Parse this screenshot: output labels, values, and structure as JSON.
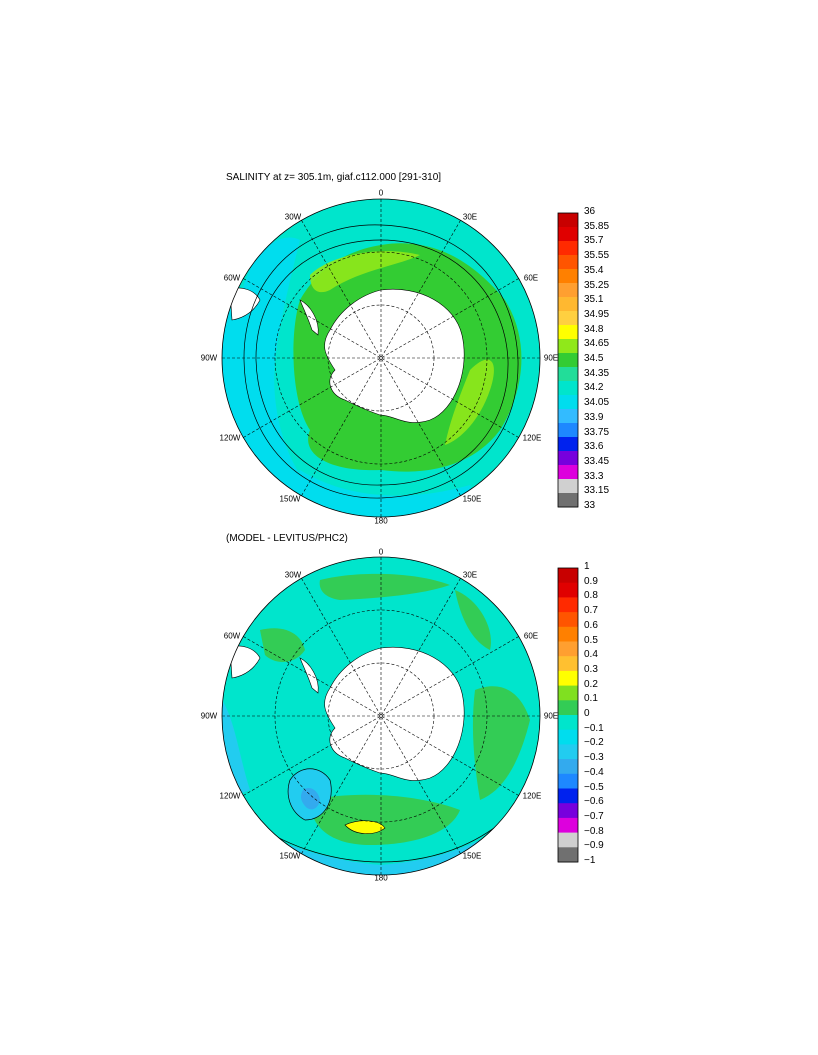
{
  "maps": [
    {
      "title": "SALINITY at z= 305.1m, giaf.c112.000 [291-310]",
      "direction_labels": {
        "top": "0",
        "top_left": "30W",
        "top_right": "30E",
        "upper_left": "60W",
        "upper_right": "60E",
        "left": "90W",
        "right": "90E",
        "lower_left": "120W",
        "lower_right": "120E",
        "bottom_left": "150W",
        "bottom_right": "150E",
        "bottom": "180"
      },
      "colorbar": {
        "labels": [
          "36",
          "35.85",
          "35.7",
          "35.55",
          "35.4",
          "35.25",
          "35.1",
          "34.95",
          "34.8",
          "34.65",
          "34.5",
          "34.35",
          "34.2",
          "34.05",
          "33.9",
          "33.75",
          "33.6",
          "33.45",
          "33.3",
          "33.15",
          "33"
        ],
        "colors": [
          "#c80000",
          "#e00000",
          "#ff2a00",
          "#ff5500",
          "#ff8000",
          "#ff9f30",
          "#ffb830",
          "#ffd040",
          "#ffff00",
          "#90e81a",
          "#33cc33",
          "#22dd99",
          "#00e5cc",
          "#00ddee",
          "#33bbff",
          "#1e88ff",
          "#0022ee",
          "#7700dd",
          "#dd00dd",
          "#d0d0d0",
          "#707070"
        ]
      }
    },
    {
      "title": "(MODEL - LEVITUS/PHC2)",
      "direction_labels": {
        "top": "0",
        "top_left": "30W",
        "top_right": "30E",
        "upper_left": "60W",
        "upper_right": "60E",
        "left": "90W",
        "right": "90E",
        "lower_left": "120W",
        "lower_right": "120E",
        "bottom_left": "150W",
        "bottom_right": "150E",
        "bottom": "180"
      },
      "colorbar": {
        "labels": [
          "1",
          "0.9",
          "0.8",
          "0.7",
          "0.6",
          "0.5",
          "0.4",
          "0.3",
          "0.2",
          "0.1",
          "0",
          "−0.1",
          "−0.2",
          "−0.3",
          "−0.4",
          "−0.5",
          "−0.6",
          "−0.7",
          "−0.8",
          "−0.9",
          "−1"
        ],
        "colors": [
          "#c80000",
          "#e00000",
          "#ff2a00",
          "#ff5500",
          "#ff8000",
          "#ff9f30",
          "#ffc030",
          "#ffff00",
          "#80e020",
          "#33cc55",
          "#00e5cc",
          "#00ddee",
          "#22ccf0",
          "#33aaee",
          "#1e88ff",
          "#0022ee",
          "#7700dd",
          "#dd00dd",
          "#d0d0d0",
          "#707070"
        ]
      }
    }
  ]
}
